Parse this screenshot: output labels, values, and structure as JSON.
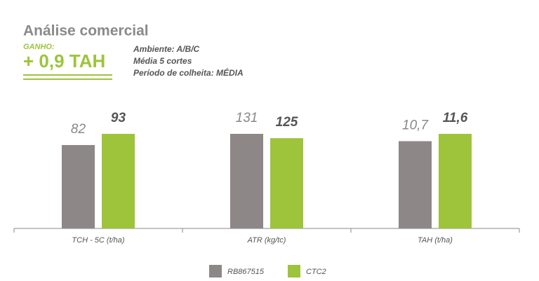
{
  "header": {
    "title": "Análise comercial",
    "gain_label": "GANHO:",
    "gain_value": "+ 0,9 TAH",
    "notes": [
      "Ambiente: A/B/C",
      "Média 5 cortes",
      "Período de colheita: MÉDIA"
    ]
  },
  "chart_data": {
    "type": "bar",
    "categories": [
      "TCH - 5C (t/ha)",
      "ATR (kg/tc)",
      "TAH (t/ha)"
    ],
    "series": [
      {
        "name": "RB867515",
        "color": "#8d8787",
        "values": [
          82,
          131,
          10.7
        ],
        "value_labels": [
          "82",
          "131",
          "10,7"
        ]
      },
      {
        "name": "CTC2",
        "color": "#9dc43b",
        "values": [
          93,
          125,
          11.6
        ],
        "value_labels": [
          "93",
          "125",
          "11,6"
        ]
      }
    ]
  }
}
